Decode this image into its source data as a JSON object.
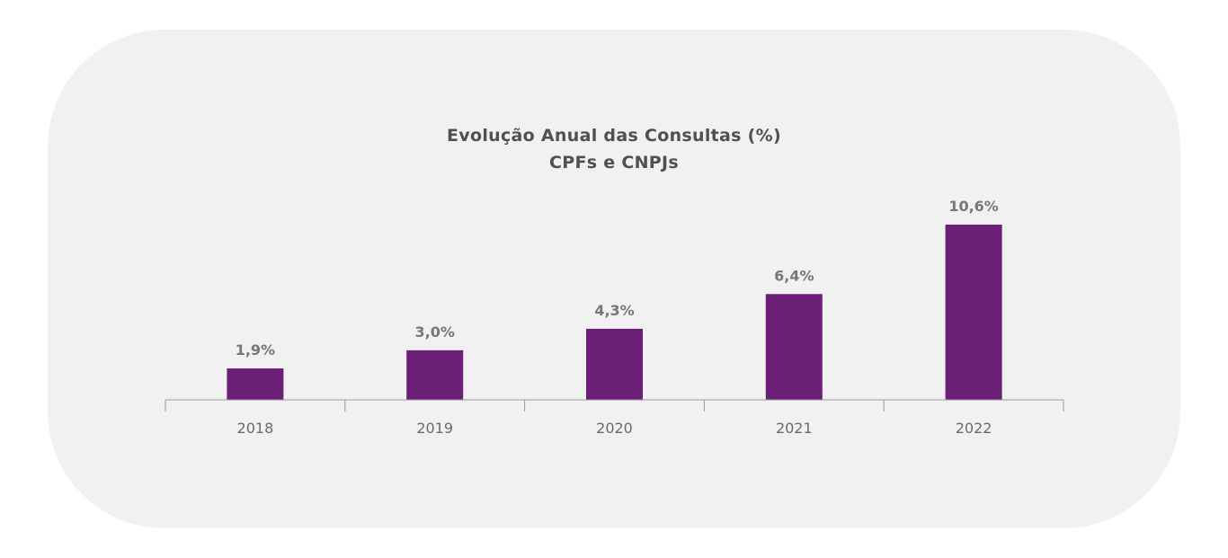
{
  "chart_data": {
    "type": "bar",
    "title": "Evolução Anual das Consultas (%)",
    "subtitle": "CPFs e CNPJs",
    "categories": [
      "2018",
      "2019",
      "2020",
      "2021",
      "2022"
    ],
    "values": [
      1.9,
      3.0,
      4.3,
      6.4,
      10.6
    ],
    "data_labels": [
      "1,9%",
      "3,0%",
      "4,3%",
      "6,4%",
      "10,6%"
    ],
    "ylim": [
      0,
      10.6
    ],
    "grid": false,
    "legend": "none",
    "bar_color": "#6b1f77",
    "axis_color": "#9a9a9a",
    "label_color": "#777777",
    "tick_label_color": "#6a6a6a"
  }
}
